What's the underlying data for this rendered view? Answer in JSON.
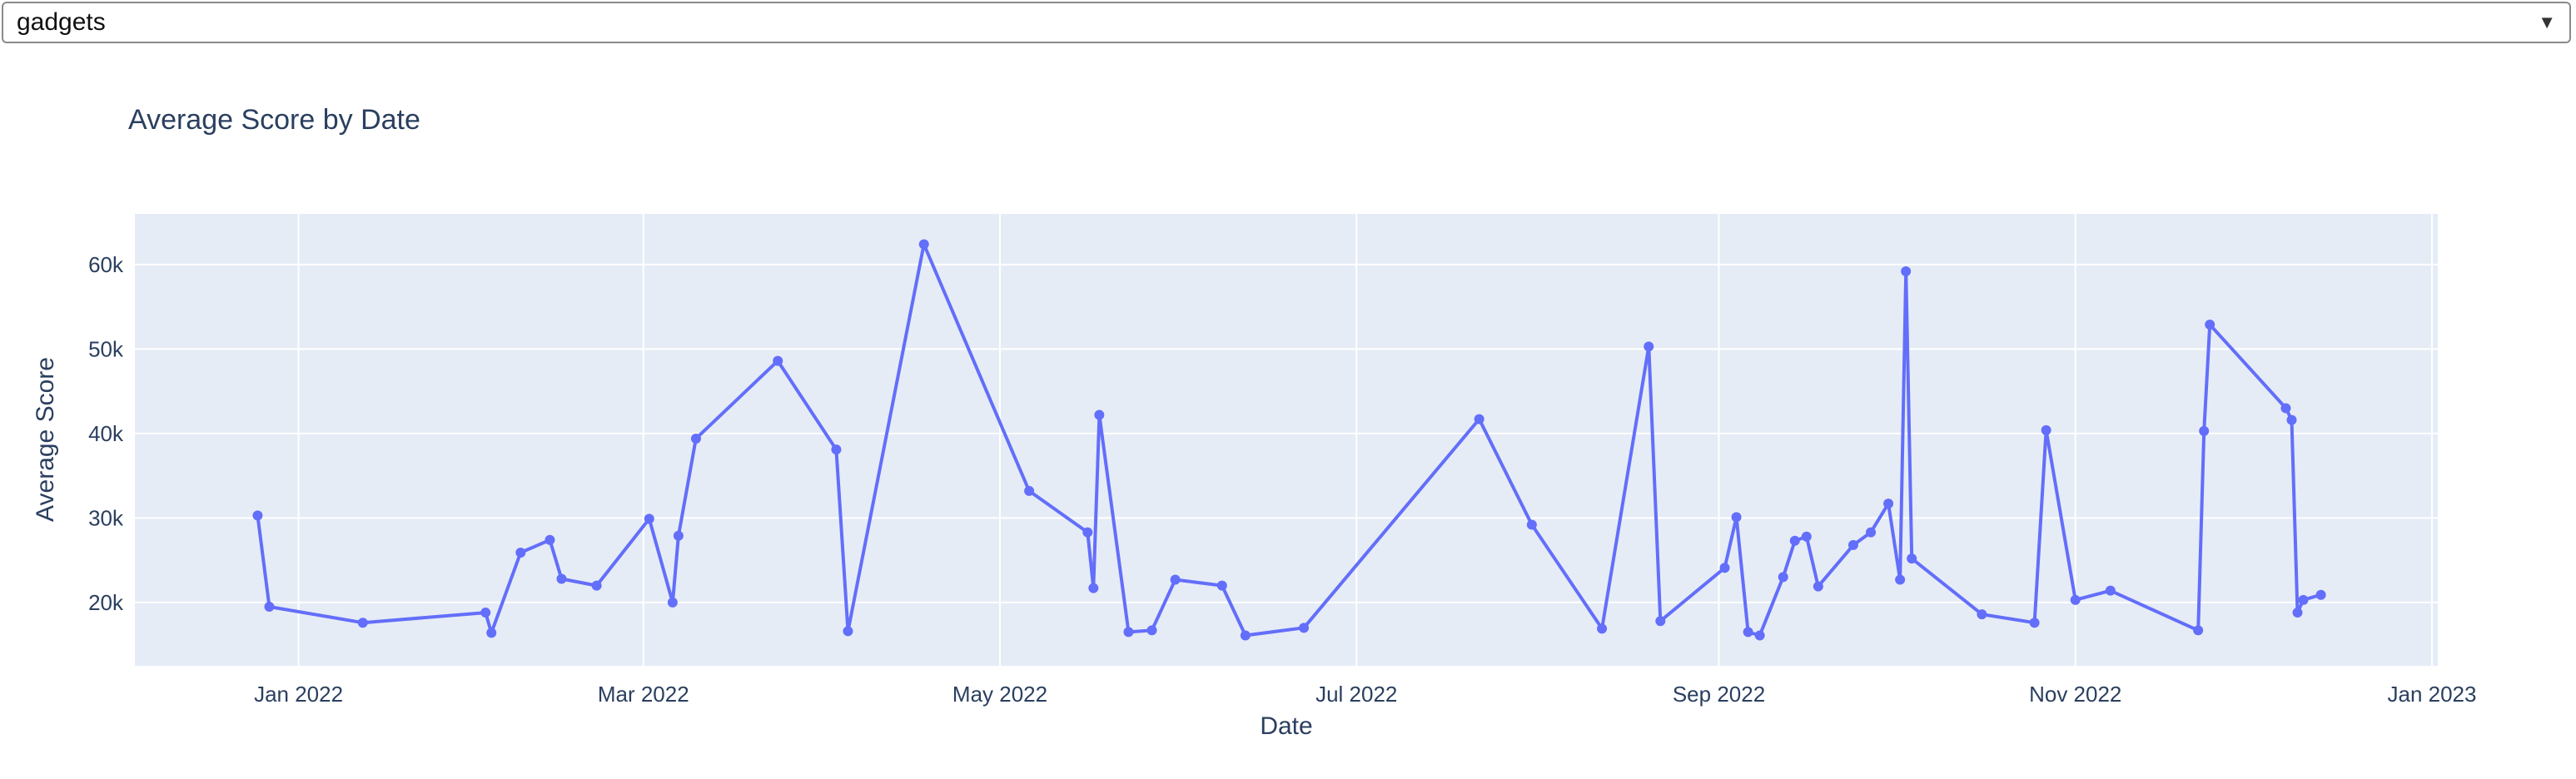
{
  "dropdown": {
    "selected": "gadgets",
    "icon": "chevron-down-icon"
  },
  "chart_data": {
    "type": "line",
    "title": "Average Score by Date",
    "xlabel": "Date",
    "ylabel": "Average Score",
    "x_tick_labels": [
      "Jan 2022",
      "Mar 2022",
      "May 2022",
      "Jul 2022",
      "Sep 2022",
      "Nov 2022",
      "Jan 2023"
    ],
    "x_tick_dates": [
      "2022-01-01",
      "2022-03-01",
      "2022-05-01",
      "2022-07-01",
      "2022-09-01",
      "2022-11-01",
      "2023-01-01"
    ],
    "y_tick_labels": [
      "20k",
      "30k",
      "40k",
      "50k",
      "60k"
    ],
    "y_tick_values": [
      20000,
      30000,
      40000,
      50000,
      60000
    ],
    "xlim": [
      "2021-12-04",
      "2023-01-02"
    ],
    "ylim": [
      12500,
      66000
    ],
    "grid": true,
    "colors": {
      "line": "#636efa",
      "plot_bg": "#e5ecf6",
      "grid": "#ffffff",
      "text": "#2a3f5f"
    },
    "series": [
      {
        "x": [
          "2021-12-25",
          "2021-12-27",
          "2022-01-12",
          "2022-02-02",
          "2022-02-03",
          "2022-02-08",
          "2022-02-13",
          "2022-02-15",
          "2022-02-21",
          "2022-03-02",
          "2022-03-06",
          "2022-03-07",
          "2022-03-10",
          "2022-03-24",
          "2022-04-03",
          "2022-04-05",
          "2022-04-18",
          "2022-05-06",
          "2022-05-16",
          "2022-05-17",
          "2022-05-18",
          "2022-05-23",
          "2022-05-27",
          "2022-05-31",
          "2022-06-08",
          "2022-06-12",
          "2022-06-22",
          "2022-07-22",
          "2022-07-31",
          "2022-08-12",
          "2022-08-20",
          "2022-08-22",
          "2022-09-02",
          "2022-09-04",
          "2022-09-06",
          "2022-09-08",
          "2022-09-12",
          "2022-09-14",
          "2022-09-16",
          "2022-09-18",
          "2022-09-24",
          "2022-09-27",
          "2022-09-30",
          "2022-10-02",
          "2022-10-03",
          "2022-10-04",
          "2022-10-16",
          "2022-10-25",
          "2022-10-27",
          "2022-11-01",
          "2022-11-07",
          "2022-11-22",
          "2022-11-23",
          "2022-11-24",
          "2022-12-07",
          "2022-12-08",
          "2022-12-09",
          "2022-12-10",
          "2022-12-13"
        ],
        "y": [
          30300,
          19500,
          17600,
          18800,
          16400,
          25900,
          27400,
          22800,
          22000,
          29900,
          20000,
          27900,
          39400,
          48600,
          38100,
          16600,
          62400,
          33200,
          28300,
          21700,
          42200,
          16500,
          16700,
          22700,
          22000,
          16100,
          17000,
          41700,
          29200,
          16900,
          50300,
          17800,
          24100,
          30100,
          16500,
          16100,
          23000,
          27300,
          27800,
          21900,
          26800,
          28300,
          31700,
          22700,
          59200,
          25200,
          18600,
          17600,
          40400,
          20300,
          21400,
          16700,
          40300,
          52900,
          43000,
          41600,
          18800,
          20300,
          20900
        ]
      }
    ]
  }
}
